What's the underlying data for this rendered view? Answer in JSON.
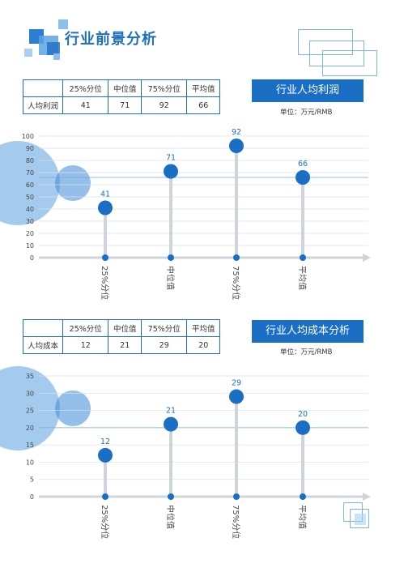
{
  "page": {
    "title": "行业前景分析",
    "accent": "#1a6fc4"
  },
  "sections": [
    {
      "badge": "行业人均利润",
      "unit": "单位：万元/RMB",
      "table": {
        "headers": [
          "",
          "25%分位",
          "中位值",
          "75%分位",
          "平均值"
        ],
        "row": [
          "人均利润",
          "41",
          "71",
          "92",
          "66"
        ]
      }
    },
    {
      "badge": "行业人均成本分析",
      "unit": "单位：万元/RMB",
      "table": {
        "headers": [
          "",
          "25%分位",
          "中位值",
          "75%分位",
          "平均值"
        ],
        "row": [
          "人均成本",
          "12",
          "21",
          "29",
          "20"
        ]
      }
    }
  ],
  "chart_data": [
    {
      "type": "scatter",
      "categories": [
        "25%分位",
        "中位值",
        "75%分位",
        "平均值"
      ],
      "values": [
        41,
        71,
        92,
        66
      ],
      "yticks": [
        0,
        10,
        20,
        30,
        40,
        50,
        60,
        70,
        80,
        90,
        100
      ],
      "ylim": [
        0,
        100
      ],
      "grid": true
    },
    {
      "type": "scatter",
      "categories": [
        "25%分位",
        "中位值",
        "75%分位",
        "平均值"
      ],
      "values": [
        12,
        21,
        29,
        20
      ],
      "yticks": [
        0,
        5,
        10,
        15,
        20,
        25,
        30,
        35
      ],
      "ylim": [
        0,
        35
      ],
      "grid": true
    }
  ]
}
